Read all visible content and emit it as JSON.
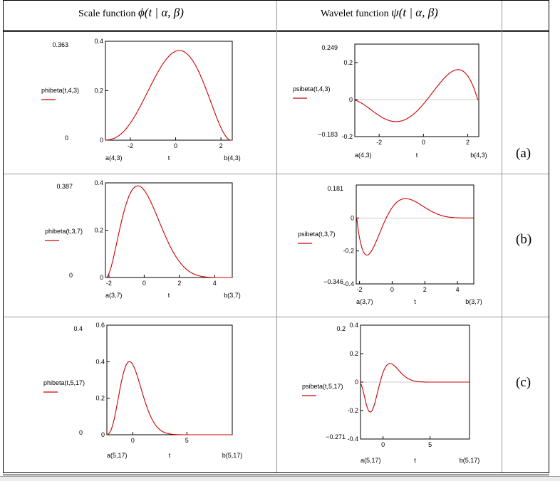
{
  "header": {
    "scale_label": "Scale function",
    "scale_math": "ϕ(t | α, β)",
    "wavelet_label": "Wavelet function",
    "wavelet_math": "ψ(t | α, β)"
  },
  "rows": [
    {
      "tag": "(a)"
    },
    {
      "tag": "(b)"
    },
    {
      "tag": "(c)"
    }
  ],
  "colors": {
    "curve": "#cc0000",
    "legend_line": "#cc0000",
    "grid": "#000000"
  },
  "chart_data": [
    {
      "id": "a-phi",
      "type": "line",
      "func": "phi",
      "alpha": 4,
      "beta": 3,
      "series": [
        {
          "name": "phibeta(t,4,3)"
        }
      ],
      "x_range": [
        -3.1,
        2.5
      ],
      "y_range": [
        0,
        0.4
      ],
      "xticks": [
        -2,
        0,
        2
      ],
      "xtick_labels": [
        "-2",
        "0",
        "2"
      ],
      "yticks": [
        0,
        0.2,
        0.4
      ],
      "ytick_labels": [
        "0",
        "0.2",
        "0.4"
      ],
      "ymax_label": "0.363",
      "ymin_label": "0",
      "x_left_label": "a(4,3)",
      "x_right_label": "b(4,3)",
      "xlabel": "t"
    },
    {
      "id": "a-psi",
      "type": "line",
      "func": "psi",
      "alpha": 4,
      "beta": 3,
      "series": [
        {
          "name": "psibeta(t,4,3)"
        }
      ],
      "x_range": [
        -3.1,
        2.5
      ],
      "y_range": [
        -0.2,
        0.3
      ],
      "xticks": [
        -2,
        0,
        2
      ],
      "xtick_labels": [
        "-2",
        "0",
        "2"
      ],
      "yticks": [
        -0.2,
        0,
        0.2
      ],
      "ytick_labels": [
        "-0.2",
        "0",
        "0.2"
      ],
      "ymax_label": "0.249",
      "ymin_label": "−0.183",
      "x_left_label": "a(4,3)",
      "x_right_label": "b(4,3)",
      "xlabel": "t"
    },
    {
      "id": "b-phi",
      "type": "line",
      "func": "phi",
      "alpha": 3,
      "beta": 7,
      "series": [
        {
          "name": "phibeta(t,3,7)"
        }
      ],
      "x_range": [
        -2.2,
        5.0
      ],
      "y_range": [
        0,
        0.4
      ],
      "xticks": [
        -2,
        0,
        2,
        4
      ],
      "xtick_labels": [
        "-2",
        "0",
        "2",
        "4"
      ],
      "yticks": [
        0,
        0.2,
        0.4
      ],
      "ytick_labels": [
        "0",
        "0.2",
        "0.4"
      ],
      "ymax_label": "0.387",
      "ymin_label": "0",
      "x_left_label": "a(3,7)",
      "x_right_label": "b(3,7)",
      "xlabel": "t"
    },
    {
      "id": "b-psi",
      "type": "line",
      "func": "psi",
      "alpha": 3,
      "beta": 7,
      "series": [
        {
          "name": "psibeta(t,3,7)"
        }
      ],
      "x_range": [
        -2.2,
        5.0
      ],
      "y_range": [
        -0.4,
        0.2
      ],
      "xticks": [
        -2,
        0,
        2,
        4
      ],
      "xtick_labels": [
        "-2",
        "0",
        "2",
        "4"
      ],
      "yticks": [
        -0.4,
        -0.2,
        0
      ],
      "ytick_labels": [
        "-0.4",
        "-0.2",
        "0"
      ],
      "ymax_label": "0.181",
      "ymin_label": "−0.346",
      "x_left_label": "a(3,7)",
      "x_right_label": "b(3,7)",
      "xlabel": "t"
    },
    {
      "id": "c-phi",
      "type": "line",
      "func": "phi",
      "alpha": 5,
      "beta": 17,
      "series": [
        {
          "name": "phibeta(t,5,17)"
        }
      ],
      "x_range": [
        -2.4,
        9.2
      ],
      "y_range": [
        0,
        0.6
      ],
      "xticks": [
        0,
        5
      ],
      "xtick_labels": [
        "0",
        "5"
      ],
      "yticks": [
        0,
        0.2,
        0.4,
        0.6
      ],
      "ytick_labels": [
        "0",
        "0.2",
        "0.4",
        "0.6"
      ],
      "ymax_label": "0.4",
      "ymin_label": "0",
      "x_left_label": "a(5,17)",
      "x_right_label": "b(5,17)",
      "xlabel": "t"
    },
    {
      "id": "c-psi",
      "type": "line",
      "func": "psi",
      "alpha": 5,
      "beta": 17,
      "series": [
        {
          "name": "psibeta(t,5,17)"
        }
      ],
      "x_range": [
        -2.4,
        9.2
      ],
      "y_range": [
        -0.4,
        0.4
      ],
      "xticks": [
        0,
        5
      ],
      "xtick_labels": [
        "0",
        "5"
      ],
      "yticks": [
        -0.4,
        -0.2,
        0,
        0.2,
        0.4
      ],
      "ytick_labels": [
        "-0.4",
        "-0.2",
        "0",
        "0.2",
        "0.4"
      ],
      "ymax_label": "0.2",
      "ymin_label": "−0.271",
      "x_left_label": "a(5,17)",
      "x_right_label": "b(5,17)",
      "xlabel": "t"
    }
  ]
}
